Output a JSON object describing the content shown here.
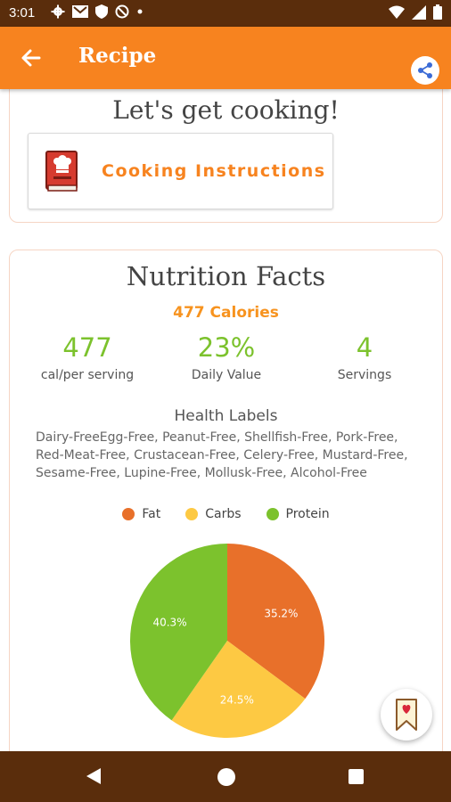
{
  "status_bar": {
    "time": "3:01",
    "left_icons": [
      "gear-icon",
      "gmail-icon",
      "shield-icon",
      "block-icon",
      "dot-icon"
    ],
    "right_icons": [
      "wifi-icon",
      "signal-icon",
      "battery-icon"
    ]
  },
  "app_bar": {
    "title": "Recipe",
    "color": "#f7831f"
  },
  "cooking": {
    "heading": "Let's get cooking!",
    "instructions_label": "Cooking Instructions"
  },
  "nutrition": {
    "title": "Nutrition Facts",
    "calories_line": "477 Calories",
    "stats": [
      {
        "value": "477",
        "label": "cal/per serving"
      },
      {
        "value": "23%",
        "label": "Daily Value"
      },
      {
        "value": "4",
        "label": "Servings"
      }
    ],
    "health_heading": "Health Labels",
    "health_labels": "Dairy-FreeEgg-Free, Peanut-Free, Shellfish-Free, Pork-Free, Red-Meat-Free, Crustacean-Free, Celery-Free, Mustard-Free, Sesame-Free, Lupine-Free, Mollusk-Free, Alcohol-Free"
  },
  "chart_data": {
    "type": "pie",
    "categories": [
      "Fat",
      "Carbs",
      "Protein"
    ],
    "values": [
      35.2,
      24.5,
      40.3
    ],
    "labels": [
      "35.2%",
      "24.5%",
      "40.3%"
    ],
    "colors": [
      "#e8702a",
      "#fdc943",
      "#7cc22d"
    ],
    "legend": "top"
  },
  "fab": {
    "icon": "bookmark-heart-icon"
  },
  "nav": {
    "icons": [
      "back-triangle-icon",
      "home-circle-icon",
      "recents-square-icon"
    ]
  }
}
